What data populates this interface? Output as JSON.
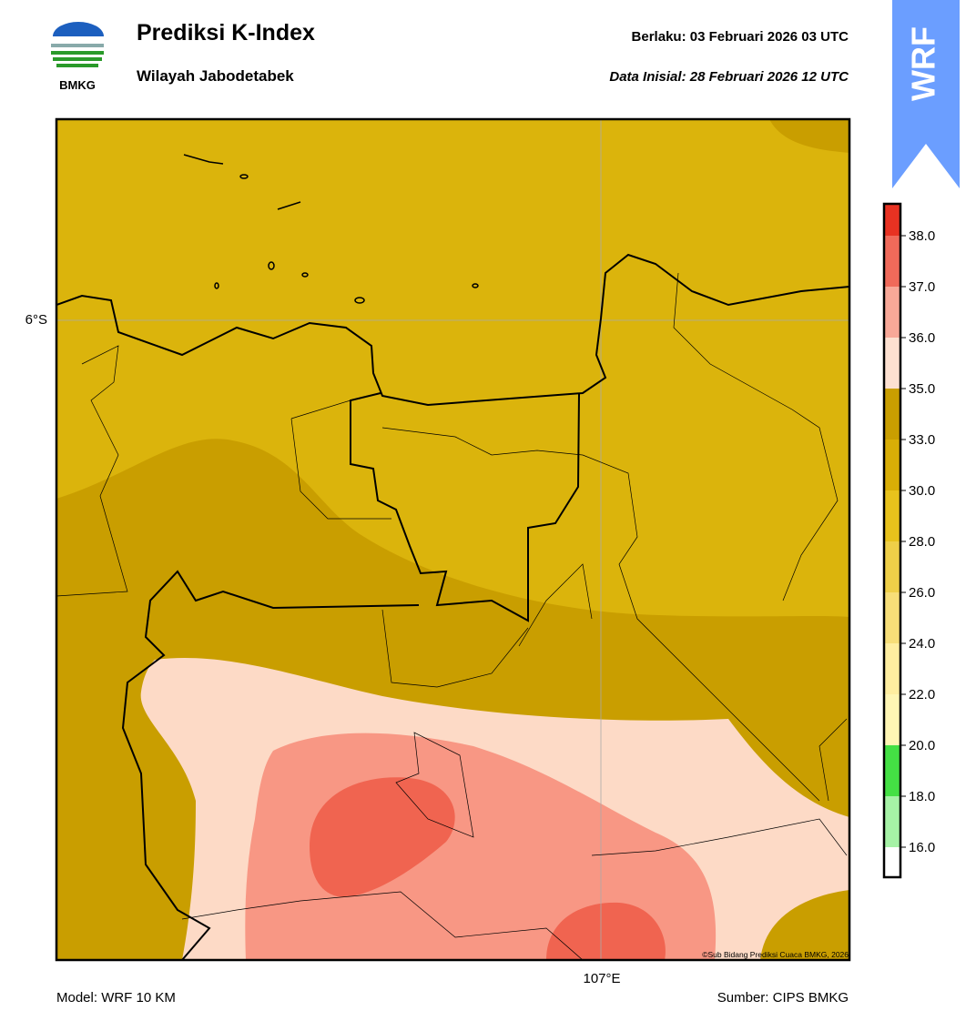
{
  "header": {
    "title": "Prediksi K-Index",
    "subtitle": "Wilayah Jabodetabek",
    "logo_text": "BMKG",
    "valid": "Berlaku:  03 Februari 2026 03 UTC",
    "init": "Data Inisial:  28 Februari 2026 12 UTC",
    "badge": "WRF"
  },
  "map": {
    "lat_label": "6°S",
    "lon_label": "107°E",
    "copyright": "©Sub Bidang Prediksi Cuaca BMKG, 2026"
  },
  "colorbar": {
    "labels": [
      "16.0",
      "18.0",
      "20.0",
      "22.0",
      "24.0",
      "26.0",
      "28.0",
      "30.0",
      "33.0",
      "35.0",
      "36.0",
      "37.0",
      "38.0"
    ],
    "colors": [
      "#ffffff",
      "#a6f2a6",
      "#44e044",
      "#fff6b4",
      "#ffeea0",
      "#f7de78",
      "#efcf48",
      "#e8c21c",
      "#d9ae06",
      "#c99e00",
      "#fde0d0",
      "#f8a898",
      "#f06a5a",
      "#e83222"
    ]
  },
  "footer": {
    "model": "Model: WRF 10 KM",
    "source": "Sumber: CIPS BMKG"
  }
}
